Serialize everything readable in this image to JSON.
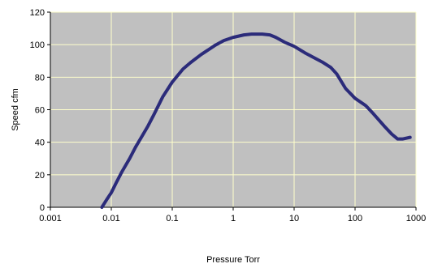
{
  "chart_data": {
    "type": "line",
    "title": "",
    "xlabel": "Pressure Torr",
    "ylabel": "Speed cfm",
    "xscale": "log",
    "xlim": [
      0.001,
      1000
    ],
    "ylim": [
      0,
      120
    ],
    "x_ticks": [
      "0.001",
      "0.01",
      "0.1",
      "1",
      "10",
      "100",
      "1000"
    ],
    "y_ticks": [
      "0",
      "20",
      "40",
      "60",
      "80",
      "100",
      "120"
    ],
    "grid": true,
    "legend": "none",
    "plot_background": "#c0c0c0",
    "grid_color": "#ffffcc",
    "line_color": "#2b2b7a",
    "series": [
      {
        "x": [
          0.007,
          0.0085,
          0.01,
          0.012,
          0.015,
          0.02,
          0.025,
          0.03,
          0.04,
          0.05,
          0.07,
          0.1,
          0.15,
          0.2,
          0.3,
          0.5,
          0.7,
          1,
          1.5,
          2,
          3,
          4,
          5,
          7,
          10,
          15,
          20,
          30,
          40,
          50,
          70,
          100,
          150,
          200,
          300,
          400,
          500,
          600,
          800
        ],
        "y": [
          0,
          5,
          9,
          15,
          22,
          30,
          37,
          42,
          50,
          57,
          68,
          77,
          85,
          89,
          94,
          99.5,
          102.5,
          104.5,
          106,
          106.5,
          106.5,
          106,
          104.5,
          101.5,
          99,
          95,
          92.5,
          89,
          86,
          82,
          73,
          67,
          62.5,
          57.5,
          50,
          45,
          42,
          42,
          43
        ]
      }
    ]
  }
}
